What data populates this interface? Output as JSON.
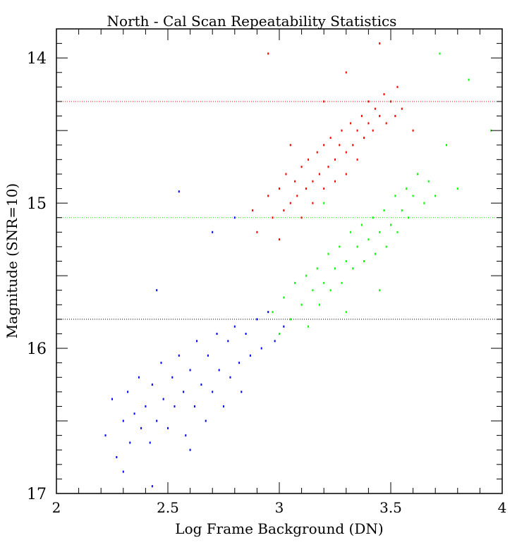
{
  "chart_data": {
    "type": "scatter",
    "title": "North - Cal Scan Repeatability Statistics",
    "xlabel": "Log Frame Background (DN)",
    "ylabel": "Magnitude (SNR=10)",
    "xlim": [
      2,
      4
    ],
    "ylim": [
      17,
      13.8
    ],
    "y_inverted": true,
    "grid": false,
    "x_ticks": [
      "2",
      "2.5",
      "3",
      "3.5",
      "4"
    ],
    "x_tick_values": [
      2,
      2.5,
      3,
      3.5,
      4
    ],
    "y_ticks": [
      "14",
      "15",
      "16",
      "17"
    ],
    "y_tick_values": [
      14,
      15,
      16,
      17
    ],
    "reference_lines": [
      {
        "y": 14.3,
        "color": "#ff0000",
        "style": "dotted"
      },
      {
        "y": 15.1,
        "color": "#00ff00",
        "style": "dotted"
      },
      {
        "y": 15.8,
        "color": "#000000",
        "style": "dotted"
      }
    ],
    "series": [
      {
        "color": "#ff0000",
        "points": [
          [
            2.88,
            15.05
          ],
          [
            2.9,
            15.2
          ],
          [
            2.95,
            14.95
          ],
          [
            2.97,
            15.1
          ],
          [
            3.0,
            14.9
          ],
          [
            3.02,
            15.05
          ],
          [
            3.03,
            14.8
          ],
          [
            3.05,
            15.0
          ],
          [
            3.07,
            14.85
          ],
          [
            3.08,
            14.95
          ],
          [
            3.1,
            14.75
          ],
          [
            3.1,
            15.1
          ],
          [
            3.12,
            14.9
          ],
          [
            3.13,
            14.7
          ],
          [
            3.15,
            14.85
          ],
          [
            3.15,
            15.0
          ],
          [
            3.17,
            14.65
          ],
          [
            3.18,
            14.8
          ],
          [
            3.2,
            14.9
          ],
          [
            3.2,
            14.6
          ],
          [
            3.22,
            14.75
          ],
          [
            3.23,
            14.55
          ],
          [
            3.25,
            14.7
          ],
          [
            3.25,
            14.85
          ],
          [
            3.27,
            14.6
          ],
          [
            3.28,
            14.5
          ],
          [
            3.3,
            14.65
          ],
          [
            3.3,
            14.8
          ],
          [
            3.32,
            14.45
          ],
          [
            3.33,
            14.6
          ],
          [
            3.35,
            14.5
          ],
          [
            3.35,
            14.7
          ],
          [
            3.37,
            14.4
          ],
          [
            3.38,
            14.55
          ],
          [
            3.4,
            14.45
          ],
          [
            3.4,
            14.3
          ],
          [
            3.42,
            14.5
          ],
          [
            3.43,
            14.35
          ],
          [
            3.45,
            14.4
          ],
          [
            3.47,
            14.25
          ],
          [
            3.48,
            14.45
          ],
          [
            3.5,
            14.3
          ],
          [
            3.52,
            14.4
          ],
          [
            3.53,
            14.2
          ],
          [
            3.55,
            14.35
          ],
          [
            3.3,
            14.1
          ],
          [
            3.2,
            14.3
          ],
          [
            3.05,
            14.6
          ],
          [
            2.95,
            13.97
          ],
          [
            3.45,
            13.9
          ],
          [
            3.6,
            14.5
          ],
          [
            3.0,
            15.25
          ]
        ]
      },
      {
        "color": "#00ff00",
        "points": [
          [
            2.97,
            15.75
          ],
          [
            3.0,
            15.9
          ],
          [
            3.02,
            15.65
          ],
          [
            3.05,
            15.8
          ],
          [
            3.07,
            15.55
          ],
          [
            3.1,
            15.7
          ],
          [
            3.12,
            15.5
          ],
          [
            3.13,
            15.85
          ],
          [
            3.15,
            15.6
          ],
          [
            3.17,
            15.45
          ],
          [
            3.18,
            15.7
          ],
          [
            3.2,
            15.55
          ],
          [
            3.22,
            15.35
          ],
          [
            3.23,
            15.6
          ],
          [
            3.25,
            15.45
          ],
          [
            3.27,
            15.3
          ],
          [
            3.28,
            15.55
          ],
          [
            3.3,
            15.4
          ],
          [
            3.32,
            15.2
          ],
          [
            3.33,
            15.45
          ],
          [
            3.35,
            15.3
          ],
          [
            3.37,
            15.15
          ],
          [
            3.38,
            15.4
          ],
          [
            3.4,
            15.25
          ],
          [
            3.42,
            15.1
          ],
          [
            3.43,
            15.35
          ],
          [
            3.45,
            15.2
          ],
          [
            3.47,
            15.05
          ],
          [
            3.48,
            15.3
          ],
          [
            3.5,
            15.15
          ],
          [
            3.52,
            14.95
          ],
          [
            3.53,
            15.2
          ],
          [
            3.55,
            15.05
          ],
          [
            3.57,
            14.9
          ],
          [
            3.58,
            15.1
          ],
          [
            3.6,
            14.95
          ],
          [
            3.62,
            14.8
          ],
          [
            3.65,
            15.0
          ],
          [
            3.67,
            14.85
          ],
          [
            3.7,
            14.95
          ],
          [
            3.75,
            14.6
          ],
          [
            3.8,
            14.9
          ],
          [
            3.95,
            14.5
          ],
          [
            3.72,
            13.97
          ],
          [
            3.85,
            14.15
          ],
          [
            3.3,
            15.75
          ],
          [
            3.2,
            15.0
          ],
          [
            3.45,
            15.6
          ]
        ]
      },
      {
        "color": "#0000ff",
        "points": [
          [
            2.22,
            16.6
          ],
          [
            2.25,
            16.35
          ],
          [
            2.27,
            16.75
          ],
          [
            2.3,
            16.5
          ],
          [
            2.32,
            16.3
          ],
          [
            2.33,
            16.65
          ],
          [
            2.35,
            16.45
          ],
          [
            2.37,
            16.2
          ],
          [
            2.38,
            16.55
          ],
          [
            2.4,
            16.4
          ],
          [
            2.42,
            16.65
          ],
          [
            2.43,
            16.25
          ],
          [
            2.45,
            16.5
          ],
          [
            2.47,
            16.1
          ],
          [
            2.48,
            16.35
          ],
          [
            2.5,
            16.55
          ],
          [
            2.52,
            16.2
          ],
          [
            2.53,
            16.4
          ],
          [
            2.55,
            16.05
          ],
          [
            2.57,
            16.3
          ],
          [
            2.58,
            16.6
          ],
          [
            2.6,
            16.15
          ],
          [
            2.62,
            16.4
          ],
          [
            2.63,
            15.95
          ],
          [
            2.65,
            16.25
          ],
          [
            2.67,
            16.5
          ],
          [
            2.68,
            16.05
          ],
          [
            2.7,
            16.3
          ],
          [
            2.72,
            15.9
          ],
          [
            2.73,
            16.15
          ],
          [
            2.75,
            16.4
          ],
          [
            2.77,
            15.95
          ],
          [
            2.78,
            16.2
          ],
          [
            2.8,
            15.85
          ],
          [
            2.82,
            16.1
          ],
          [
            2.83,
            16.3
          ],
          [
            2.85,
            15.9
          ],
          [
            2.87,
            16.05
          ],
          [
            2.9,
            15.8
          ],
          [
            2.92,
            16.0
          ],
          [
            2.95,
            15.75
          ],
          [
            2.98,
            15.95
          ],
          [
            3.02,
            15.85
          ],
          [
            2.55,
            14.92
          ],
          [
            2.45,
            15.6
          ],
          [
            2.7,
            15.2
          ],
          [
            2.8,
            15.1
          ],
          [
            2.3,
            16.85
          ],
          [
            2.43,
            16.95
          ],
          [
            2.6,
            16.7
          ]
        ]
      }
    ]
  }
}
